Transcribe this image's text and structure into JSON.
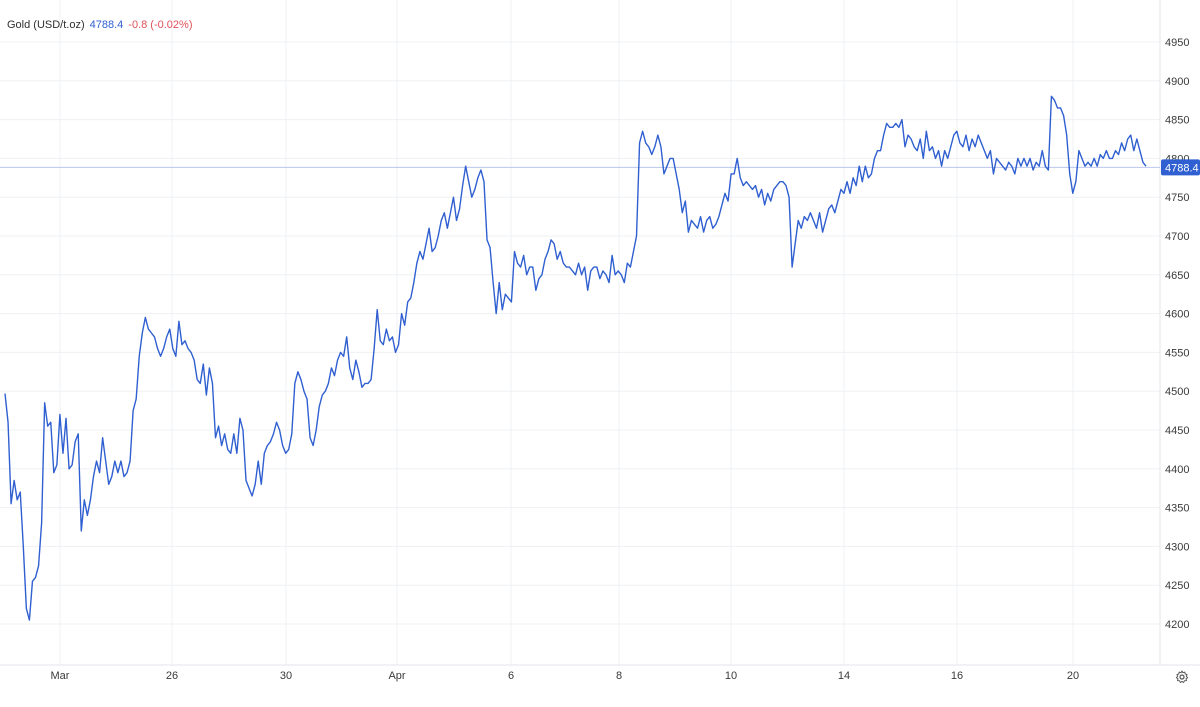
{
  "legend": {
    "instrument": "Gold (USD/t.oz)",
    "last_value": "4788.4",
    "change": "-0.8 (-0.02%)"
  },
  "colors": {
    "line": "#2f5fd0",
    "grid": "#eef0f3",
    "price_line": "#b9c6ef",
    "tag_bg": "#2f5fd0",
    "positive": "#2f5fd0",
    "negative": "#e0515a"
  },
  "icons": {
    "settings": "gear-icon"
  },
  "chart_data": {
    "type": "line",
    "series": [
      {
        "values": [
          4497,
          4460,
          4355,
          4385,
          4360,
          4370,
          4300,
          4220,
          4205,
          4255,
          4260,
          4275,
          4330,
          4485,
          4455,
          4460,
          4395,
          4405,
          4470,
          4420,
          4465,
          4400,
          4405,
          4435,
          4445,
          4320,
          4360,
          4340,
          4360,
          4390,
          4410,
          4395,
          4440,
          4410,
          4380,
          4390,
          4410,
          4395,
          4410,
          4390,
          4395,
          4410,
          4475,
          4490,
          4545,
          4575,
          4595,
          4580,
          4575,
          4570,
          4555,
          4545,
          4555,
          4570,
          4580,
          4555,
          4545,
          4590,
          4560,
          4565,
          4555,
          4550,
          4540,
          4515,
          4510,
          4535,
          4495,
          4530,
          4510,
          4440,
          4455,
          4430,
          4445,
          4425,
          4420,
          4445,
          4420,
          4465,
          4450,
          4385,
          4375,
          4365,
          4380,
          4410,
          4380,
          4420,
          4430,
          4435,
          4445,
          4460,
          4450,
          4430,
          4420,
          4425,
          4445,
          4510,
          4525,
          4515,
          4500,
          4490,
          4440,
          4430,
          4450,
          4480,
          4495,
          4500,
          4510,
          4530,
          4520,
          4540,
          4550,
          4545,
          4570,
          4530,
          4515,
          4540,
          4525,
          4505,
          4510,
          4510,
          4515,
          4555,
          4605,
          4565,
          4560,
          4580,
          4565,
          4570,
          4550,
          4560,
          4600,
          4585,
          4615,
          4620,
          4640,
          4665,
          4680,
          4670,
          4690,
          4710,
          4680,
          4685,
          4700,
          4720,
          4730,
          4710,
          4730,
          4750,
          4720,
          4735,
          4765,
          4790,
          4770,
          4750,
          4760,
          4775,
          4785,
          4770,
          4695,
          4685,
          4640,
          4600,
          4640,
          4605,
          4625,
          4620,
          4615,
          4680,
          4665,
          4660,
          4675,
          4650,
          4660,
          4660,
          4630,
          4645,
          4650,
          4670,
          4680,
          4695,
          4690,
          4670,
          4680,
          4665,
          4660,
          4660,
          4655,
          4650,
          4665,
          4650,
          4660,
          4630,
          4655,
          4660,
          4660,
          4645,
          4655,
          4650,
          4640,
          4675,
          4650,
          4655,
          4650,
          4640,
          4665,
          4660,
          4680,
          4700,
          4820,
          4835,
          4820,
          4815,
          4805,
          4815,
          4830,
          4815,
          4780,
          4790,
          4800,
          4800,
          4780,
          4760,
          4730,
          4745,
          4705,
          4720,
          4715,
          4710,
          4725,
          4705,
          4720,
          4725,
          4710,
          4715,
          4725,
          4740,
          4755,
          4745,
          4780,
          4780,
          4800,
          4775,
          4765,
          4770,
          4765,
          4760,
          4765,
          4750,
          4760,
          4740,
          4755,
          4745,
          4760,
          4765,
          4770,
          4770,
          4765,
          4750,
          4660,
          4690,
          4720,
          4710,
          4725,
          4720,
          4730,
          4720,
          4710,
          4730,
          4705,
          4720,
          4735,
          4740,
          4730,
          4745,
          4760,
          4755,
          4770,
          4755,
          4775,
          4765,
          4790,
          4770,
          4790,
          4775,
          4780,
          4800,
          4810,
          4810,
          4830,
          4845,
          4840,
          4840,
          4845,
          4840,
          4850,
          4815,
          4830,
          4825,
          4815,
          4810,
          4825,
          4800,
          4835,
          4810,
          4815,
          4800,
          4810,
          4790,
          4810,
          4800,
          4815,
          4830,
          4835,
          4820,
          4815,
          4830,
          4810,
          4825,
          4815,
          4830,
          4820,
          4810,
          4800,
          4810,
          4780,
          4800,
          4795,
          4790,
          4785,
          4795,
          4790,
          4780,
          4800,
          4790,
          4800,
          4790,
          4800,
          4785,
          4795,
          4790,
          4810,
          4790,
          4785,
          4880,
          4875,
          4865,
          4865,
          4855,
          4830,
          4780,
          4755,
          4770,
          4810,
          4800,
          4790,
          4795,
          4790,
          4800,
          4790,
          4805,
          4800,
          4810,
          4800,
          4800,
          4810,
          4805,
          4820,
          4810,
          4825,
          4830,
          4810,
          4825,
          4810,
          4795,
          4790
        ]
      }
    ],
    "x_tick_labels": [
      "Mar",
      "26",
      "30",
      "Apr",
      "6",
      "8",
      "10",
      "14",
      "16",
      "20"
    ],
    "y_ticks": [
      4200,
      4250,
      4300,
      4350,
      4400,
      4450,
      4500,
      4550,
      4600,
      4650,
      4700,
      4750,
      4800,
      4850,
      4900,
      4950
    ],
    "ylim": [
      4190,
      4965
    ],
    "current_price": 4788.4,
    "current_price_label": "4788.4",
    "grid": true,
    "legend_position": "top-left",
    "axis_position": "right"
  }
}
